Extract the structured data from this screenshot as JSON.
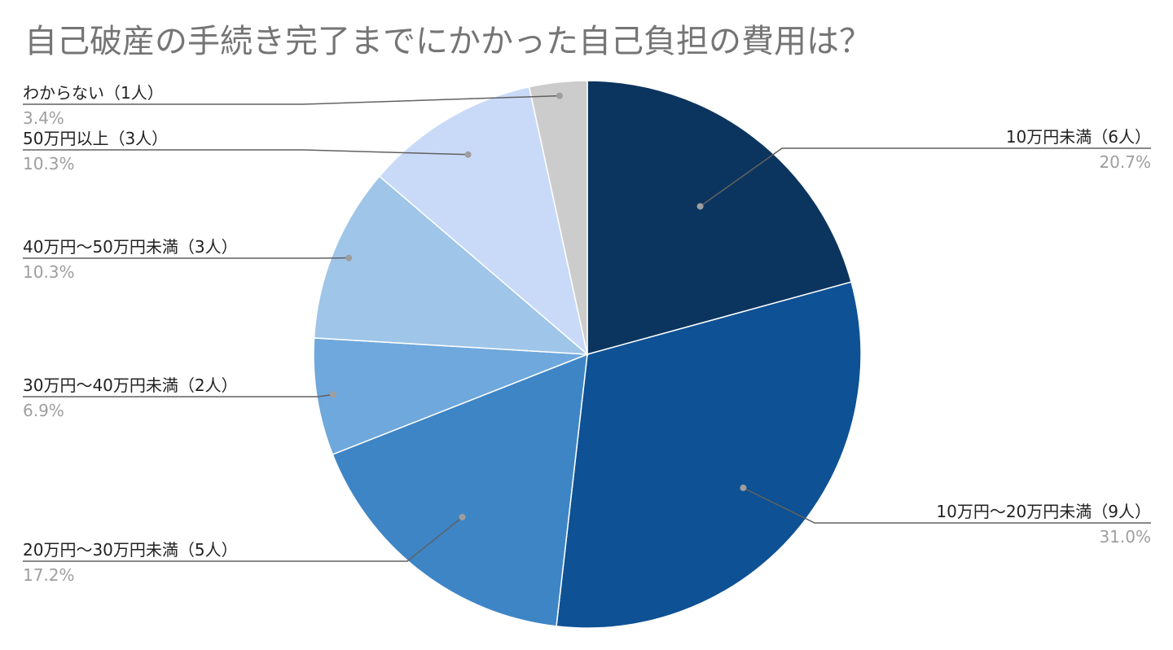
{
  "chart_data": {
    "type": "pie",
    "title": "自己破産の手続き完了までにかかった自己負担の費用は？",
    "slices": [
      {
        "label": "10万円未満（6人）",
        "percent_label": "20.7%",
        "value": 20.7,
        "color": "#0b355f"
      },
      {
        "label": "10万円〜20万円未満（9人）",
        "percent_label": "31.0%",
        "value": 31.0,
        "color": "#0e5194"
      },
      {
        "label": "20万円〜30万円未満（5人）",
        "percent_label": "17.2%",
        "value": 17.2,
        "color": "#3e85c6"
      },
      {
        "label": "30万円〜40万円未満（2人）",
        "percent_label": "6.9%",
        "value": 6.9,
        "color": "#6fa8dc"
      },
      {
        "label": "40万円〜50万円未満（3人）",
        "percent_label": "10.3%",
        "value": 10.3,
        "color": "#9fc5e8"
      },
      {
        "label": "50万円以上（3人）",
        "percent_label": "10.3%",
        "value": 10.3,
        "color": "#c9daf8"
      },
      {
        "label": "わからない（1人）",
        "percent_label": "3.4%",
        "value": 3.4,
        "color": "#cccccc"
      }
    ]
  }
}
